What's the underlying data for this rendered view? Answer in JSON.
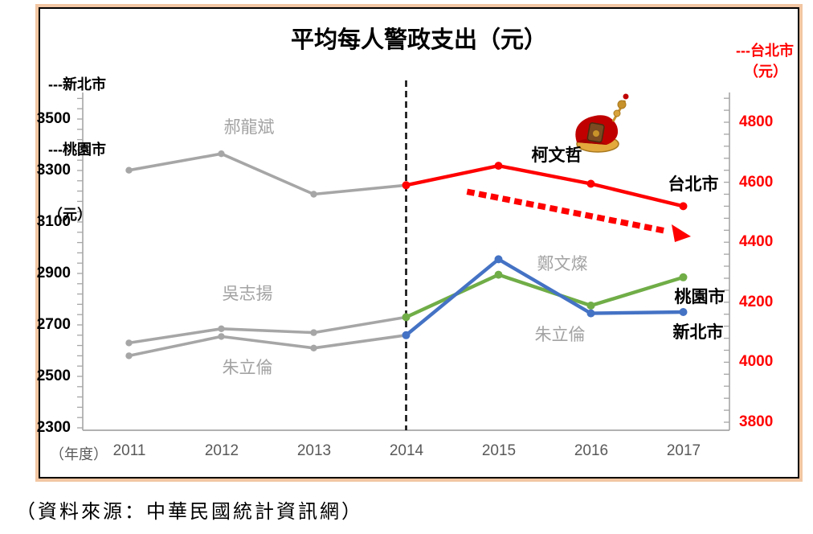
{
  "chart_data": {
    "type": "line",
    "title": "平均每人警政支出（元）",
    "x_label_prefix": "（年度）",
    "years": [
      "2011",
      "2012",
      "2013",
      "2014",
      "2015",
      "2016",
      "2017"
    ],
    "left_axis": {
      "legend_lines": [
        "---新北市",
        "---桃園市",
        "（元）"
      ],
      "min": 2300,
      "max": 3500,
      "tick_step": 200,
      "tick_labels": [
        "3500",
        "3300",
        "3100",
        "2900",
        "2700",
        "2500",
        "2300"
      ]
    },
    "right_axis": {
      "legend_lines": [
        "---台北市",
        "（元）"
      ],
      "min": 3800,
      "max": 4800,
      "tick_step": 200,
      "color": "#FF0000",
      "tick_labels": [
        "4800",
        "4600",
        "4400",
        "4200",
        "4000",
        "3800"
      ]
    },
    "divider_year": 2014,
    "series": [
      {
        "name": "台北市 2011-2014 (郝龍斌任內)",
        "axis": "right",
        "color": "#A6A6A6",
        "years": [
          2011,
          2012,
          2013,
          2014
        ],
        "values": [
          4640,
          4695,
          4560,
          4590
        ]
      },
      {
        "name": "桃園市 2011-2014 (吳志揚任內)",
        "axis": "left",
        "color": "#A6A6A6",
        "years": [
          2011,
          2012,
          2013,
          2014
        ],
        "values": [
          2630,
          2685,
          2670,
          2730
        ]
      },
      {
        "name": "新北市 2011-2014 (朱立倫任內)",
        "axis": "left",
        "color": "#A6A6A6",
        "years": [
          2011,
          2012,
          2013,
          2014
        ],
        "values": [
          2580,
          2655,
          2610,
          2660
        ]
      },
      {
        "name": "台北市 2014-2017 (柯文哲任內)",
        "axis": "right",
        "color": "#FF0000",
        "years": [
          2014,
          2015,
          2016,
          2017
        ],
        "values": [
          4590,
          4655,
          4595,
          4520
        ]
      },
      {
        "name": "桃園市 2014-2017 (鄭文燦任內)",
        "axis": "left",
        "color": "#70AD47",
        "years": [
          2014,
          2015,
          2016,
          2017
        ],
        "values": [
          2730,
          2895,
          2775,
          2885
        ]
      },
      {
        "name": "新北市 2014-2017 (朱立倫任內)",
        "axis": "left",
        "color": "#4472C4",
        "years": [
          2014,
          2015,
          2016,
          2017
        ],
        "values": [
          2660,
          2955,
          2745,
          2750
        ]
      }
    ],
    "annotations": {
      "hao_long_bin": "郝龍斌",
      "wu_zhi_yang": "吳志揚",
      "zhu_li_lun_left": "朱立倫",
      "ke_wen_zhe": "柯文哲",
      "zheng_wen_can": "鄭文燦",
      "zhu_li_lun_right": "朱立倫",
      "taipei_city": "台北市",
      "taoyuan_city": "桃園市",
      "xinbei_city": "新北市"
    },
    "source": "（資料來源：中華民國統計資訊網）",
    "layout_hints": {
      "legend_position": "top-corners",
      "grid": false,
      "note": "gray = previous mayors 2011-2014; colored = mayors elected 2014; dotted red arrow = declining Taipei trend"
    }
  }
}
